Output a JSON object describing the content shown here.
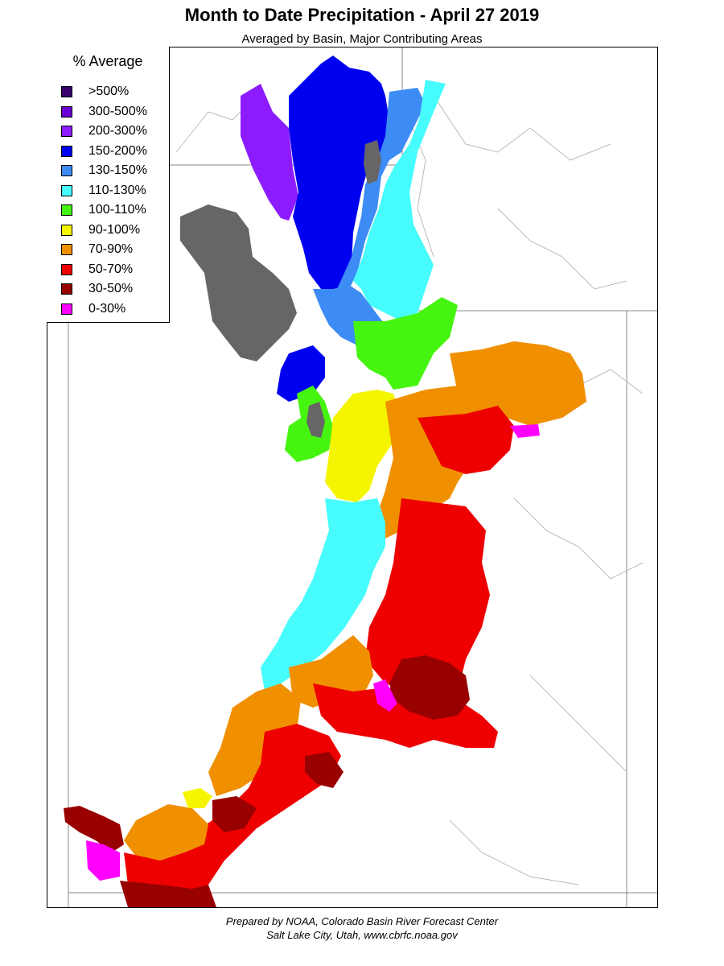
{
  "title": "Month to Date Precipitation - April 27 2019",
  "subtitle": "Averaged by Basin, Major Contributing Areas",
  "legend": {
    "title": "% Average",
    "items": [
      {
        "label": ">500%",
        "color": "#3a0070"
      },
      {
        "label": "300-500%",
        "color": "#6b00d6"
      },
      {
        "label": "200-300%",
        "color": "#8c1cff"
      },
      {
        "label": "150-200%",
        "color": "#0000f0"
      },
      {
        "label": "130-150%",
        "color": "#3d8cf5"
      },
      {
        "label": "110-130%",
        "color": "#47fcfc"
      },
      {
        "label": "100-110%",
        "color": "#46f50f"
      },
      {
        "label": "90-100%",
        "color": "#f5f500"
      },
      {
        "label": "70-90%",
        "color": "#f09000"
      },
      {
        "label": "50-70%",
        "color": "#ee0000"
      },
      {
        "label": "30-50%",
        "color": "#990000"
      },
      {
        "label": "0-30%",
        "color": "#ff00ff"
      }
    ]
  },
  "lake_color": "#666666",
  "credits": {
    "line1": "Prepared by NOAA, Colorado Basin River Forecast Center",
    "line2": "Salt Lake City, Utah, www.cbrfc.noaa.gov"
  }
}
